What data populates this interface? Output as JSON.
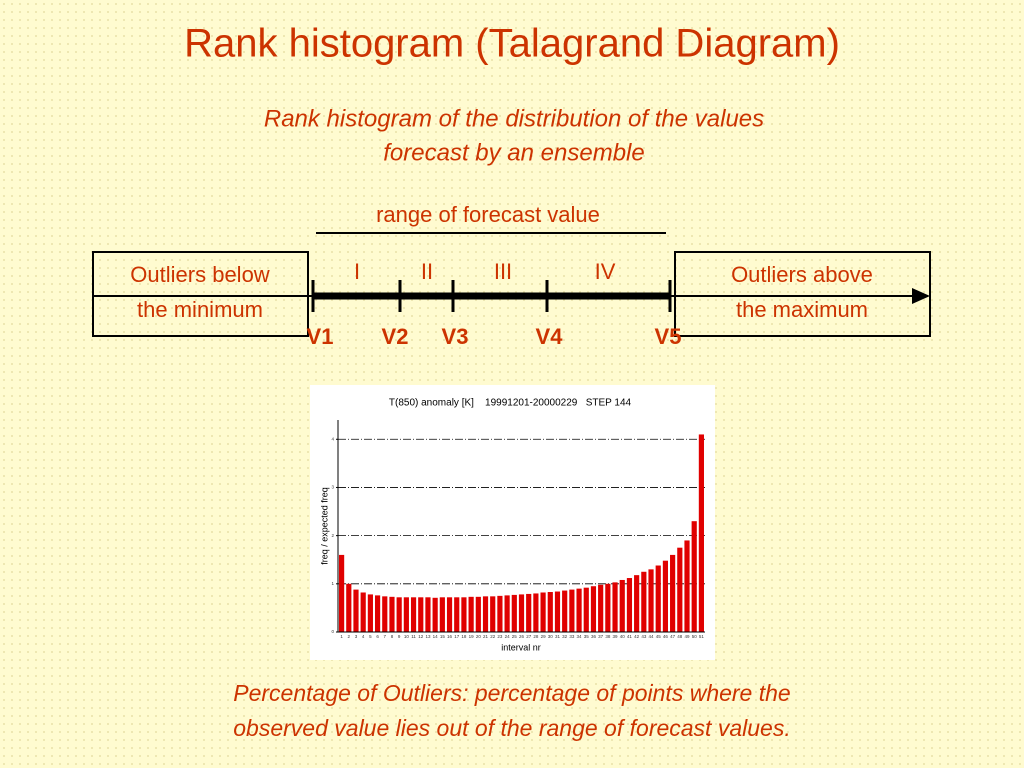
{
  "title": "Rank histogram (Talagrand Diagram)",
  "subtitle": [
    "Rank histogram of the distribution of the values",
    "forecast by an ensemble"
  ],
  "range_label": "range of forecast value",
  "left_box": [
    "Outliers below",
    "the minimum"
  ],
  "right_box": [
    "Outliers above",
    "the maximum"
  ],
  "intervals": [
    "I",
    "II",
    "III",
    "IV"
  ],
  "points": [
    "V1",
    "V2",
    "V3",
    "V4",
    "V5"
  ],
  "chart_data": {
    "type": "bar",
    "title": "T(850) anomaly [K]    19991201-20000229   STEP 144",
    "ylabel": "freq / expected freq",
    "xlabel": "interval nr",
    "categories": [
      1,
      2,
      3,
      4,
      5,
      6,
      7,
      8,
      9,
      10,
      11,
      12,
      13,
      14,
      15,
      16,
      17,
      18,
      19,
      20,
      21,
      22,
      23,
      24,
      25,
      26,
      27,
      28,
      29,
      30,
      31,
      32,
      33,
      34,
      35,
      36,
      37,
      38,
      39,
      40,
      41,
      42,
      43,
      44,
      45,
      46,
      47,
      48,
      49,
      50,
      51
    ],
    "values": [
      1.6,
      1.0,
      0.88,
      0.82,
      0.78,
      0.76,
      0.74,
      0.73,
      0.72,
      0.72,
      0.72,
      0.72,
      0.72,
      0.71,
      0.72,
      0.72,
      0.72,
      0.72,
      0.73,
      0.73,
      0.74,
      0.74,
      0.75,
      0.76,
      0.77,
      0.78,
      0.79,
      0.8,
      0.82,
      0.83,
      0.84,
      0.86,
      0.88,
      0.9,
      0.92,
      0.95,
      0.98,
      1.0,
      1.03,
      1.08,
      1.12,
      1.18,
      1.25,
      1.3,
      1.38,
      1.48,
      1.6,
      1.75,
      1.9,
      2.3,
      4.1
    ],
    "color": "#e00000",
    "ylim": [
      0,
      4.4
    ],
    "yticks": [
      0,
      1,
      2,
      3,
      4
    ],
    "grid": true
  },
  "footer": [
    "Percentage of Outliers: percentage of points where the",
    "observed value lies out of the range of forecast values."
  ]
}
